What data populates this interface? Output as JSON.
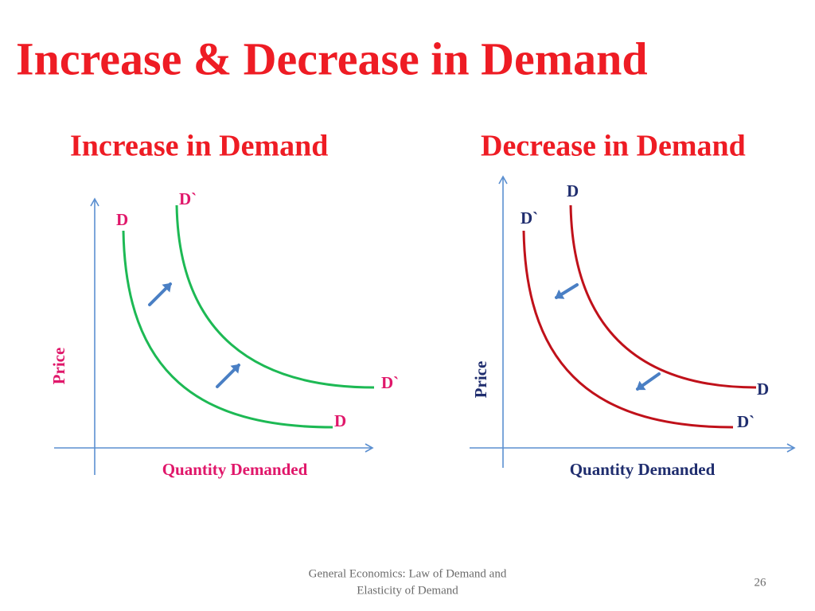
{
  "title": "Increase & Decrease in Demand",
  "panels": [
    {
      "heading": "Increase in Demand",
      "y_axis_label": "Price",
      "x_axis_label": "Quantity Demanded",
      "original_curve": {
        "start_label": "D",
        "end_label": "D"
      },
      "shifted_curve": {
        "start_label": "D`",
        "end_label": "D`"
      }
    },
    {
      "heading": "Decrease in Demand",
      "y_axis_label": "Price",
      "x_axis_label": "Quantity Demanded",
      "original_curve": {
        "start_label": "D",
        "end_label": "D"
      },
      "shifted_curve": {
        "start_label": "D`",
        "end_label": "D`"
      }
    }
  ],
  "footer": {
    "lines": [
      "General Economics: Law of Demand and",
      "Elasticity of  Demand"
    ],
    "page_number": "26"
  }
}
